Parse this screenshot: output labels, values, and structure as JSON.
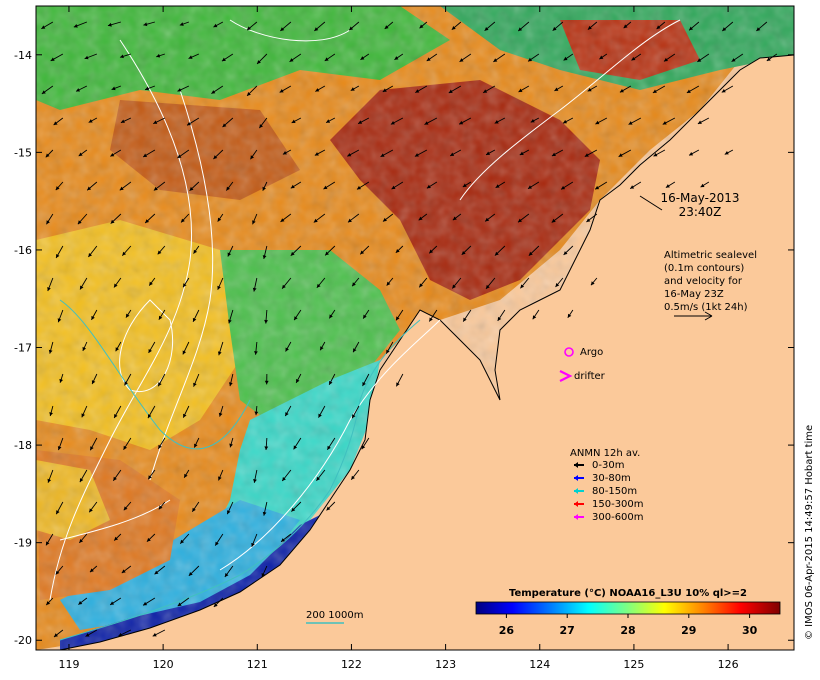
{
  "map": {
    "date": "16-May-2013",
    "time": "23:40Z",
    "lat_ticks": [
      "-14",
      "-15",
      "-16",
      "-17",
      "-18",
      "-19",
      "-20"
    ],
    "lon_ticks": [
      "119",
      "120",
      "121",
      "122",
      "123",
      "124",
      "125",
      "126"
    ],
    "lat_range": [
      -20.1,
      -13.5
    ],
    "lon_range": [
      118.65,
      126.7
    ],
    "land_color": "#fbc99a"
  },
  "altimetry_note": {
    "lines": [
      "Altimetric sealevel",
      "(0.1m contours)",
      "and velocity for",
      "16-May 23Z",
      "0.5m/s (1kt 24h)"
    ]
  },
  "argo": {
    "label": "Argo",
    "color": "#ff00ff"
  },
  "drifter": {
    "label": "drifter",
    "color": "#ff00ff"
  },
  "anmn": {
    "title": "ANMN 12h av.",
    "items": [
      {
        "label": "0-30m",
        "color": "#000000"
      },
      {
        "label": "30-80m",
        "color": "#0000ff"
      },
      {
        "label": "80-150m",
        "color": "#00d0d0"
      },
      {
        "label": "150-300m",
        "color": "#ff0000"
      },
      {
        "label": "300-600m",
        "color": "#ff00ff"
      }
    ]
  },
  "colorbar": {
    "title": "Temperature (°C) NOAA16_L3U 10% ql>=2",
    "ticks": [
      "26",
      "27",
      "28",
      "29",
      "30"
    ],
    "stops": [
      "#00007f",
      "#0000ff",
      "#0080ff",
      "#00ffff",
      "#80ff80",
      "#ffff00",
      "#ff8000",
      "#ff0000",
      "#7f0000"
    ]
  },
  "isobath": {
    "label": "200 1000m",
    "color": "#40c0c0"
  },
  "credit": "© IMOS 06-Apr-2015 14:49:57 Hobart time"
}
